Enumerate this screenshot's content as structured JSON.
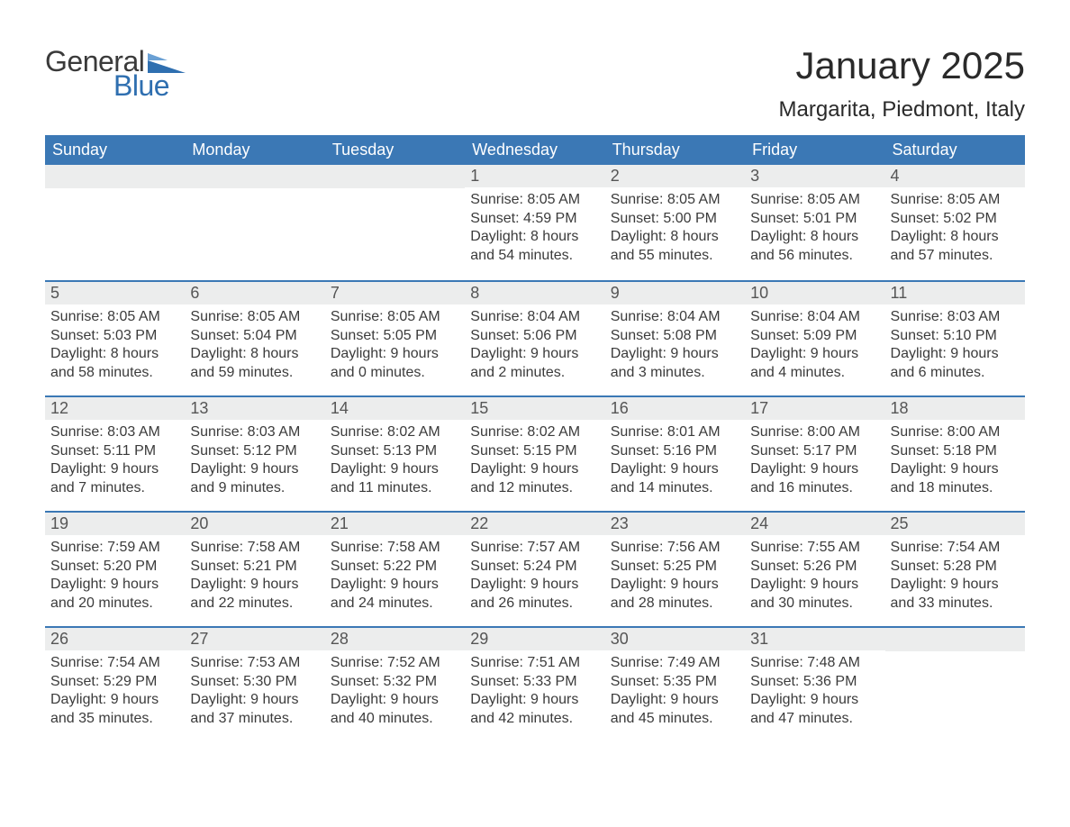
{
  "colors": {
    "header_bg": "#3b78b5",
    "header_text": "#ffffff",
    "daynum_bg": "#eceded",
    "daynum_text": "#555555",
    "body_text": "#3b3b3b",
    "week_border": "#3b78b5",
    "page_bg": "#ffffff",
    "logo_dark": "#3a3a3a",
    "logo_blue": "#2f6fb0"
  },
  "typography": {
    "month_title_pt": 42,
    "location_pt": 24,
    "dow_pt": 18,
    "daynum_pt": 18,
    "body_pt": 16,
    "logo_pt": 32
  },
  "logo": {
    "word1": "General",
    "word2": "Blue"
  },
  "title": "January 2025",
  "location": "Margarita, Piedmont, Italy",
  "days_of_week": [
    "Sunday",
    "Monday",
    "Tuesday",
    "Wednesday",
    "Thursday",
    "Friday",
    "Saturday"
  ],
  "weeks": [
    [
      null,
      null,
      null,
      {
        "n": "1",
        "sunrise": "8:05 AM",
        "sunset": "4:59 PM",
        "dl_h": "8",
        "dl_m": "54"
      },
      {
        "n": "2",
        "sunrise": "8:05 AM",
        "sunset": "5:00 PM",
        "dl_h": "8",
        "dl_m": "55"
      },
      {
        "n": "3",
        "sunrise": "8:05 AM",
        "sunset": "5:01 PM",
        "dl_h": "8",
        "dl_m": "56"
      },
      {
        "n": "4",
        "sunrise": "8:05 AM",
        "sunset": "5:02 PM",
        "dl_h": "8",
        "dl_m": "57"
      }
    ],
    [
      {
        "n": "5",
        "sunrise": "8:05 AM",
        "sunset": "5:03 PM",
        "dl_h": "8",
        "dl_m": "58"
      },
      {
        "n": "6",
        "sunrise": "8:05 AM",
        "sunset": "5:04 PM",
        "dl_h": "8",
        "dl_m": "59"
      },
      {
        "n": "7",
        "sunrise": "8:05 AM",
        "sunset": "5:05 PM",
        "dl_h": "9",
        "dl_m": "0"
      },
      {
        "n": "8",
        "sunrise": "8:04 AM",
        "sunset": "5:06 PM",
        "dl_h": "9",
        "dl_m": "2"
      },
      {
        "n": "9",
        "sunrise": "8:04 AM",
        "sunset": "5:08 PM",
        "dl_h": "9",
        "dl_m": "3"
      },
      {
        "n": "10",
        "sunrise": "8:04 AM",
        "sunset": "5:09 PM",
        "dl_h": "9",
        "dl_m": "4"
      },
      {
        "n": "11",
        "sunrise": "8:03 AM",
        "sunset": "5:10 PM",
        "dl_h": "9",
        "dl_m": "6"
      }
    ],
    [
      {
        "n": "12",
        "sunrise": "8:03 AM",
        "sunset": "5:11 PM",
        "dl_h": "9",
        "dl_m": "7"
      },
      {
        "n": "13",
        "sunrise": "8:03 AM",
        "sunset": "5:12 PM",
        "dl_h": "9",
        "dl_m": "9"
      },
      {
        "n": "14",
        "sunrise": "8:02 AM",
        "sunset": "5:13 PM",
        "dl_h": "9",
        "dl_m": "11"
      },
      {
        "n": "15",
        "sunrise": "8:02 AM",
        "sunset": "5:15 PM",
        "dl_h": "9",
        "dl_m": "12"
      },
      {
        "n": "16",
        "sunrise": "8:01 AM",
        "sunset": "5:16 PM",
        "dl_h": "9",
        "dl_m": "14"
      },
      {
        "n": "17",
        "sunrise": "8:00 AM",
        "sunset": "5:17 PM",
        "dl_h": "9",
        "dl_m": "16"
      },
      {
        "n": "18",
        "sunrise": "8:00 AM",
        "sunset": "5:18 PM",
        "dl_h": "9",
        "dl_m": "18"
      }
    ],
    [
      {
        "n": "19",
        "sunrise": "7:59 AM",
        "sunset": "5:20 PM",
        "dl_h": "9",
        "dl_m": "20"
      },
      {
        "n": "20",
        "sunrise": "7:58 AM",
        "sunset": "5:21 PM",
        "dl_h": "9",
        "dl_m": "22"
      },
      {
        "n": "21",
        "sunrise": "7:58 AM",
        "sunset": "5:22 PM",
        "dl_h": "9",
        "dl_m": "24"
      },
      {
        "n": "22",
        "sunrise": "7:57 AM",
        "sunset": "5:24 PM",
        "dl_h": "9",
        "dl_m": "26"
      },
      {
        "n": "23",
        "sunrise": "7:56 AM",
        "sunset": "5:25 PM",
        "dl_h": "9",
        "dl_m": "28"
      },
      {
        "n": "24",
        "sunrise": "7:55 AM",
        "sunset": "5:26 PM",
        "dl_h": "9",
        "dl_m": "30"
      },
      {
        "n": "25",
        "sunrise": "7:54 AM",
        "sunset": "5:28 PM",
        "dl_h": "9",
        "dl_m": "33"
      }
    ],
    [
      {
        "n": "26",
        "sunrise": "7:54 AM",
        "sunset": "5:29 PM",
        "dl_h": "9",
        "dl_m": "35"
      },
      {
        "n": "27",
        "sunrise": "7:53 AM",
        "sunset": "5:30 PM",
        "dl_h": "9",
        "dl_m": "37"
      },
      {
        "n": "28",
        "sunrise": "7:52 AM",
        "sunset": "5:32 PM",
        "dl_h": "9",
        "dl_m": "40"
      },
      {
        "n": "29",
        "sunrise": "7:51 AM",
        "sunset": "5:33 PM",
        "dl_h": "9",
        "dl_m": "42"
      },
      {
        "n": "30",
        "sunrise": "7:49 AM",
        "sunset": "5:35 PM",
        "dl_h": "9",
        "dl_m": "45"
      },
      {
        "n": "31",
        "sunrise": "7:48 AM",
        "sunset": "5:36 PM",
        "dl_h": "9",
        "dl_m": "47"
      },
      null
    ]
  ],
  "labels": {
    "sunrise": "Sunrise: ",
    "sunset": "Sunset: ",
    "daylight_pre": "Daylight: ",
    "hours_word": " hours",
    "and_word": "and ",
    "minutes_word": " minutes."
  }
}
